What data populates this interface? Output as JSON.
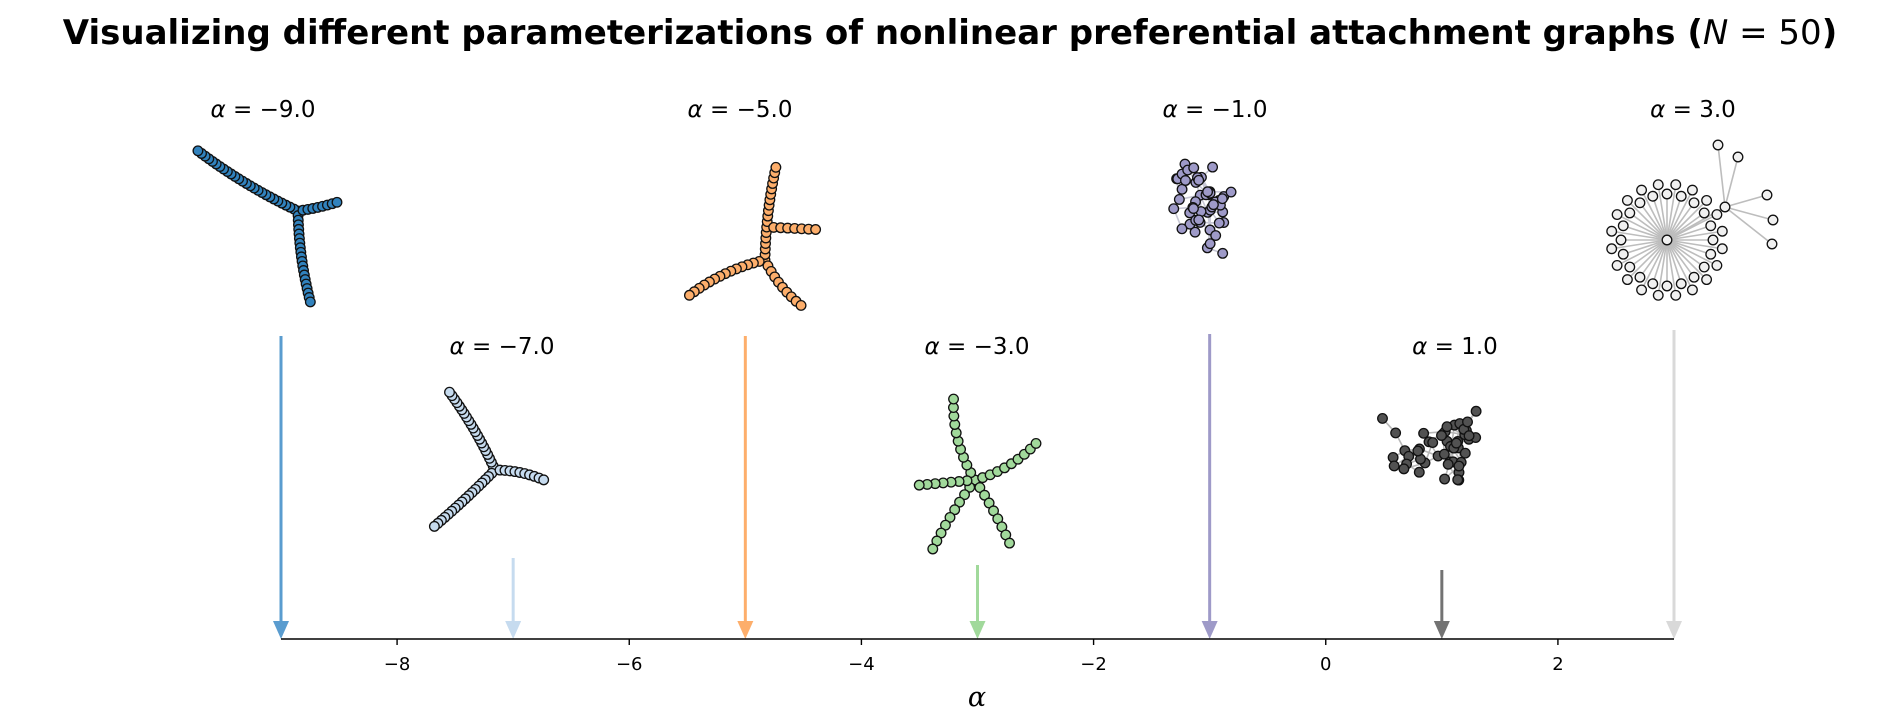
{
  "title": {
    "prefix": "Visualizing different parameterizations of nonlinear preferential attachment graphs (",
    "var": "N",
    "eq": " = 50",
    "suffix": ")"
  },
  "label_symbol": "α",
  "axis": {
    "xlabel": "α",
    "xlim": [
      -9,
      3
    ],
    "ticks": [
      -8,
      -6,
      -4,
      -2,
      0,
      2
    ],
    "tick_labels": [
      "−8",
      "−6",
      "−4",
      "−2",
      "0",
      "2"
    ]
  },
  "panels": [
    {
      "alpha": -9.0,
      "label": " = −9.0",
      "row": "top",
      "color": "#3182bd",
      "edge": "#3a4a5c",
      "shape": "line-star"
    },
    {
      "alpha": -7.0,
      "label": " = −7.0",
      "row": "bottom",
      "color": "#c6dbef",
      "edge": "#44505c",
      "shape": "line-star"
    },
    {
      "alpha": -5.0,
      "label": " = −5.0",
      "row": "top",
      "color": "#fdae6b",
      "edge": "#5a4634",
      "shape": "branchy"
    },
    {
      "alpha": -3.0,
      "label": " = −3.0",
      "row": "bottom",
      "color": "#a1d99b",
      "edge": "#3f5a3c",
      "shape": "spider"
    },
    {
      "alpha": -1.0,
      "label": " = −1.0",
      "row": "top",
      "color": "#9e9ac8",
      "edge": "#c8c8d6",
      "shape": "tree"
    },
    {
      "alpha": 1.0,
      "label": " = 1.0",
      "row": "bottom",
      "color": "#525252",
      "edge": "#b8b8b8",
      "shape": "hubby"
    },
    {
      "alpha": 3.0,
      "label": " = 3.0",
      "row": "top",
      "color": "#f0f0f0",
      "edge": "#bdbdbd",
      "shape": "star"
    }
  ],
  "arrow_colors": [
    "#5a9ccf",
    "#c6dbef",
    "#fdae6b",
    "#a1d99b",
    "#9e9ac8",
    "#737373",
    "#d9d9d9"
  ]
}
